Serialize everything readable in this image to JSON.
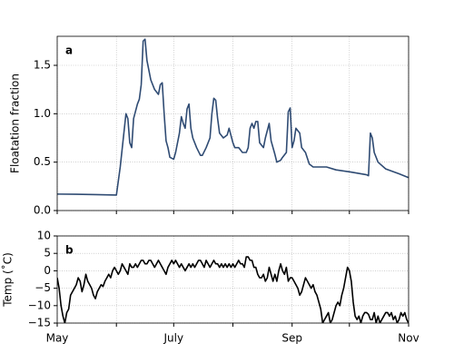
{
  "chart_data": [
    {
      "type": "line",
      "panel_label": "a",
      "ylabel": "Floatation fraction",
      "x": [
        0,
        10,
        20,
        31,
        33,
        36,
        37,
        38,
        39,
        40,
        42,
        43,
        44,
        45,
        46,
        47,
        49,
        51,
        53,
        54,
        55,
        56,
        57,
        58,
        59,
        61,
        62,
        64,
        65,
        66,
        67,
        68,
        69,
        70,
        71,
        73,
        75,
        76,
        78,
        80,
        81,
        82,
        83,
        84,
        85,
        87,
        89,
        90,
        92,
        93,
        95,
        97,
        99,
        100,
        101,
        102,
        103,
        104,
        105,
        106,
        108,
        109,
        111,
        112,
        114,
        115,
        117,
        118,
        120,
        121,
        122,
        123,
        124,
        125,
        127,
        128,
        130,
        132,
        134,
        141,
        146,
        153,
        162,
        163,
        164,
        165,
        166,
        168,
        172,
        179,
        184
      ],
      "series": [
        {
          "color": "#2f4b73",
          "values": [
            0.17,
            0.168,
            0.165,
            0.16,
            0.45,
            1.0,
            0.95,
            0.7,
            0.65,
            0.95,
            1.1,
            1.15,
            1.3,
            1.75,
            1.77,
            1.55,
            1.35,
            1.25,
            1.2,
            1.3,
            1.32,
            1.0,
            0.72,
            0.65,
            0.55,
            0.53,
            0.6,
            0.8,
            0.97,
            0.9,
            0.85,
            1.05,
            1.1,
            0.85,
            0.75,
            0.65,
            0.57,
            0.57,
            0.65,
            0.75,
            1.0,
            1.16,
            1.14,
            0.95,
            0.8,
            0.75,
            0.78,
            0.85,
            0.7,
            0.65,
            0.65,
            0.6,
            0.6,
            0.65,
            0.85,
            0.9,
            0.85,
            0.92,
            0.92,
            0.7,
            0.65,
            0.75,
            0.9,
            0.72,
            0.58,
            0.5,
            0.52,
            0.55,
            0.6,
            1.02,
            1.06,
            0.65,
            0.72,
            0.85,
            0.8,
            0.65,
            0.6,
            0.48,
            0.45,
            0.45,
            0.42,
            0.4,
            0.37,
            0.36,
            0.8,
            0.75,
            0.6,
            0.5,
            0.43,
            0.38,
            0.34
          ]
        }
      ],
      "xlim": [
        0,
        184
      ],
      "xticks": [
        {
          "value": 0,
          "label": null
        },
        {
          "value": 31,
          "label": null
        },
        {
          "value": 61,
          "label": null
        },
        {
          "value": 92,
          "label": null
        },
        {
          "value": 123,
          "label": null
        },
        {
          "value": 153,
          "label": null
        },
        {
          "value": 184,
          "label": null
        }
      ],
      "ylim": [
        0,
        1.8
      ],
      "yticks": [
        {
          "value": 0,
          "label": "0.0"
        },
        0.5,
        {
          "value": 1,
          "label": "1.0"
        },
        1.5
      ],
      "grid": true
    },
    {
      "type": "line",
      "panel_label": "b",
      "ylabel": "Temp (˚C)",
      "x": [
        0,
        1,
        2,
        3,
        4,
        5,
        6,
        7,
        8,
        9,
        10,
        11,
        12,
        13,
        14,
        15,
        16,
        17,
        18,
        19,
        20,
        21,
        22,
        23,
        24,
        25,
        26,
        27,
        28,
        29,
        30,
        31,
        32,
        33,
        34,
        35,
        36,
        37,
        38,
        39,
        40,
        41,
        42,
        43,
        44,
        45,
        46,
        47,
        48,
        49,
        50,
        51,
        52,
        53,
        54,
        55,
        56,
        57,
        58,
        59,
        60,
        61,
        62,
        63,
        64,
        65,
        66,
        67,
        68,
        69,
        70,
        71,
        72,
        73,
        74,
        75,
        76,
        77,
        78,
        79,
        80,
        81,
        82,
        83,
        84,
        85,
        86,
        87,
        88,
        89,
        90,
        91,
        92,
        93,
        94,
        95,
        96,
        97,
        98,
        99,
        100,
        101,
        102,
        103,
        104,
        105,
        106,
        107,
        108,
        109,
        110,
        111,
        112,
        113,
        114,
        115,
        116,
        117,
        118,
        119,
        120,
        121,
        122,
        123,
        124,
        125,
        126,
        127,
        128,
        129,
        130,
        131,
        132,
        133,
        134,
        135,
        136,
        137,
        138,
        139,
        140,
        141,
        142,
        143,
        144,
        145,
        146,
        147,
        148,
        149,
        150,
        151,
        152,
        153,
        154,
        155,
        156,
        157,
        158,
        159,
        160,
        161,
        162,
        163,
        164,
        165,
        166,
        167,
        168,
        169,
        170,
        171,
        172,
        173,
        174,
        175,
        176,
        177,
        178,
        179,
        180,
        181,
        182,
        183,
        184
      ],
      "series": [
        {
          "color": "#000000",
          "values": [
            -2,
            -5,
            -10,
            -13,
            -15,
            -12,
            -11,
            -7,
            -6,
            -5,
            -4,
            -2,
            -3,
            -6,
            -4,
            -1,
            -3,
            -4,
            -5,
            -7,
            -8,
            -6,
            -5,
            -4,
            -4.5,
            -3,
            -2,
            -1,
            -2,
            0,
            1,
            0,
            -1,
            0,
            2,
            1,
            0,
            -1,
            2,
            1,
            1,
            2,
            1,
            2,
            3,
            3,
            2,
            2,
            3,
            3,
            2,
            1,
            2,
            3,
            2,
            1,
            0,
            -1,
            1,
            2,
            3,
            2,
            3,
            2,
            1,
            2,
            1,
            0,
            1,
            2,
            1,
            2,
            1,
            2,
            3,
            3,
            2,
            1,
            3,
            2,
            1,
            2,
            3,
            2,
            2,
            1,
            2,
            1,
            2,
            1,
            2,
            1,
            2,
            1,
            2,
            3,
            2,
            2,
            1,
            4,
            4,
            3,
            3,
            1,
            1,
            -1,
            -2,
            -2,
            -1,
            -3,
            -2,
            1,
            -1,
            -3,
            -1,
            -3,
            0,
            2,
            0,
            -1,
            1,
            -3,
            -2,
            -2,
            -3,
            -4,
            -5,
            -7,
            -6,
            -4,
            -2,
            -3,
            -4,
            -5,
            -4,
            -6,
            -7,
            -9,
            -11,
            -15,
            -14,
            -13,
            -12,
            -15,
            -14,
            -12,
            -10,
            -9,
            -10,
            -7,
            -5,
            -2,
            1,
            0,
            -3,
            -9,
            -13,
            -14,
            -13,
            -15,
            -13,
            -12,
            -12,
            -12.5,
            -14,
            -14,
            -12,
            -15,
            -13,
            -15,
            -14,
            -13,
            -12,
            -12,
            -13,
            -12,
            -14,
            -13,
            -15,
            -14,
            -12,
            -13,
            -12,
            -14,
            -15
          ]
        }
      ],
      "xlim": [
        0,
        184
      ],
      "xticks": [
        {
          "value": 0,
          "label": "May"
        },
        {
          "value": 31,
          "label": null
        },
        {
          "value": 61,
          "label": "July"
        },
        {
          "value": 92,
          "label": null
        },
        {
          "value": 123,
          "label": "Sep"
        },
        {
          "value": 153,
          "label": null
        },
        {
          "value": 184,
          "label": "Nov"
        }
      ],
      "ylim": [
        -15,
        10
      ],
      "yticks": [
        {
          "value": -15,
          "label": "−15"
        },
        {
          "value": -10,
          "label": "−10"
        },
        {
          "value": -5,
          "label": "−5"
        },
        0,
        5,
        10
      ],
      "grid": true
    }
  ]
}
